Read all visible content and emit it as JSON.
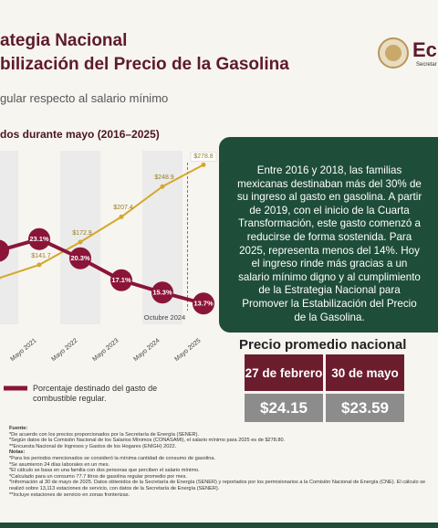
{
  "header": {
    "title_line1": "ategia Nacional",
    "title_line2": "bilización del Precio de la Gasolina",
    "subtitle": "gular respecto al salario mínimo",
    "logo_text": "Ec",
    "logo_subtext": "Secretar"
  },
  "chart_data": {
    "type": "line",
    "title": "dos durante mayo (2016–2025)",
    "categories": [
      null,
      "Mayo 2021",
      "Mayo 2022",
      "Mayo 2023",
      "Mayo 2024",
      "Mayo 2025"
    ],
    "series": [
      {
        "name": "Porcentaje destinado del gasto de combustible regular.",
        "color": "#8a1538",
        "values": [
          21.4,
          23.1,
          20.3,
          17.1,
          15.3,
          13.7
        ],
        "value_labels": [
          null,
          "23.1%",
          "20.3%",
          "17.1%",
          "15.3%",
          "13.7%"
        ]
      },
      {
        "color": "#d4a82a",
        "axis": "y2",
        "values": [
          123.2,
          141.7,
          172.9,
          207.4,
          248.9,
          278.8
        ],
        "value_labels": [
          null,
          "$141.7",
          "$172.9",
          "$207.4",
          "$248.9",
          "$278.8"
        ]
      }
    ],
    "ylim": [
      10,
      36
    ],
    "y2lim": [
      54,
      298
    ],
    "annotation": "Octubre 2024"
  },
  "summary": {
    "text": "Entre 2016 y 2018, las familias mexicanas destinaban más del 30% de su ingreso al gasto en gasolina. A partir de 2019, con el inicio de la Cuarta Transformación, este gasto comenzó a reducirse de forma sostenida. Para 2025, representa menos del 14%. Hoy el ingreso rinde más gracias a un salario mínimo digno y al cumplimiento de la Estrategia Nacional para Promover la Estabilización del Precio de la Gasolina."
  },
  "price_table": {
    "title": "Precio promedio nacional",
    "headers": [
      "27 de febrero",
      "30 de mayo"
    ],
    "values": [
      "$24.15",
      "$23.59"
    ]
  },
  "footnotes": [
    {
      "heading": "Fuente:",
      "items": [
        "*De acuerdo con los precios proporcionados por la Secretaría de Energía (SENER).",
        "*Según datos de la Comisión Nacional de los Salarios Mínimos (CONASAMI), el salario mínimo para 2025 es de $278.80.",
        "**Encuesta Nacional de Ingresos y Gastos de los Hogares (ENIGH) 2022."
      ]
    },
    {
      "heading": "Notas:",
      "items": [
        "*Para los periodos mencionados se consideró la mínima cantidad de consumo de gasolina.",
        "*Se asumieron 24 días laborales en un mes.",
        "*El cálculo se basa en una familia con dos personas que perciben el salario mínimo.",
        "*Calculado para un consumo 77.7 litros de gasolina regular promedio por mes.",
        "*Información al 30 de mayo de 2025. Datos obtenidos de la Secretaría de Energía (SENER) y reportados por los permisionarios a la Comisión Nacional de Energía (CNE). El cálculo se realizó sobre 13,113 estaciones de servicio, con datos de la Secretaría de Energía (SENER).",
        "**Incluye estaciones de servicio en zonas fronterizas."
      ]
    }
  ]
}
